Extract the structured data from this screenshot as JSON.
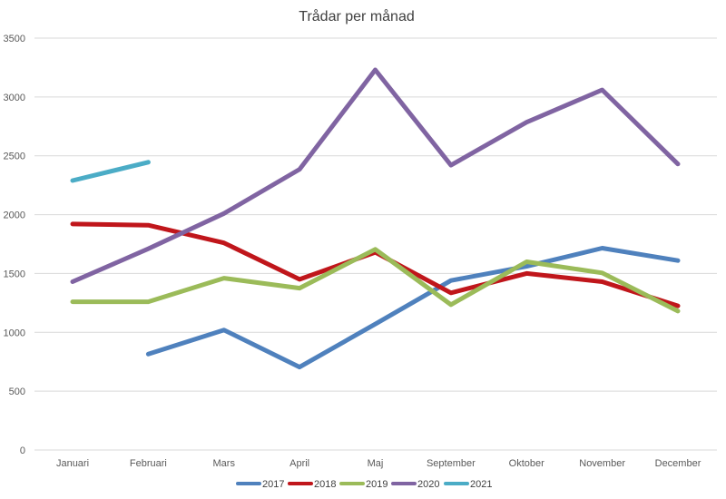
{
  "chart_data": {
    "type": "line",
    "title": "Trådar per månad",
    "xlabel": "",
    "ylabel": "",
    "categories": [
      "Januari",
      "Februari",
      "Mars",
      "April",
      "Maj",
      "September",
      "Oktober",
      "November",
      "December"
    ],
    "ylim": [
      0,
      3500
    ],
    "yticks": [
      0,
      500,
      1000,
      1500,
      2000,
      2500,
      3000,
      3500
    ],
    "grid": true,
    "legend_position": "bottom",
    "series": [
      {
        "name": "2017",
        "color": "#4f81bd",
        "values": [
          null,
          815,
          1020,
          705,
          1070,
          1440,
          1560,
          1715,
          1610
        ]
      },
      {
        "name": "2018",
        "color": "#c0161b",
        "values": [
          1920,
          1910,
          1760,
          1450,
          1680,
          1335,
          1500,
          1430,
          1225
        ]
      },
      {
        "name": "2019",
        "color": "#9bbb59",
        "values": [
          1260,
          1260,
          1460,
          1375,
          1705,
          1235,
          1600,
          1505,
          1180
        ]
      },
      {
        "name": "2020",
        "color": "#8064a2",
        "values": [
          1430,
          1710,
          2010,
          2385,
          3230,
          2420,
          2785,
          3060,
          2430
        ]
      },
      {
        "name": "2021",
        "color": "#4bacc6",
        "values": [
          2290,
          2445,
          null,
          null,
          null,
          null,
          null,
          null,
          null
        ]
      }
    ]
  }
}
